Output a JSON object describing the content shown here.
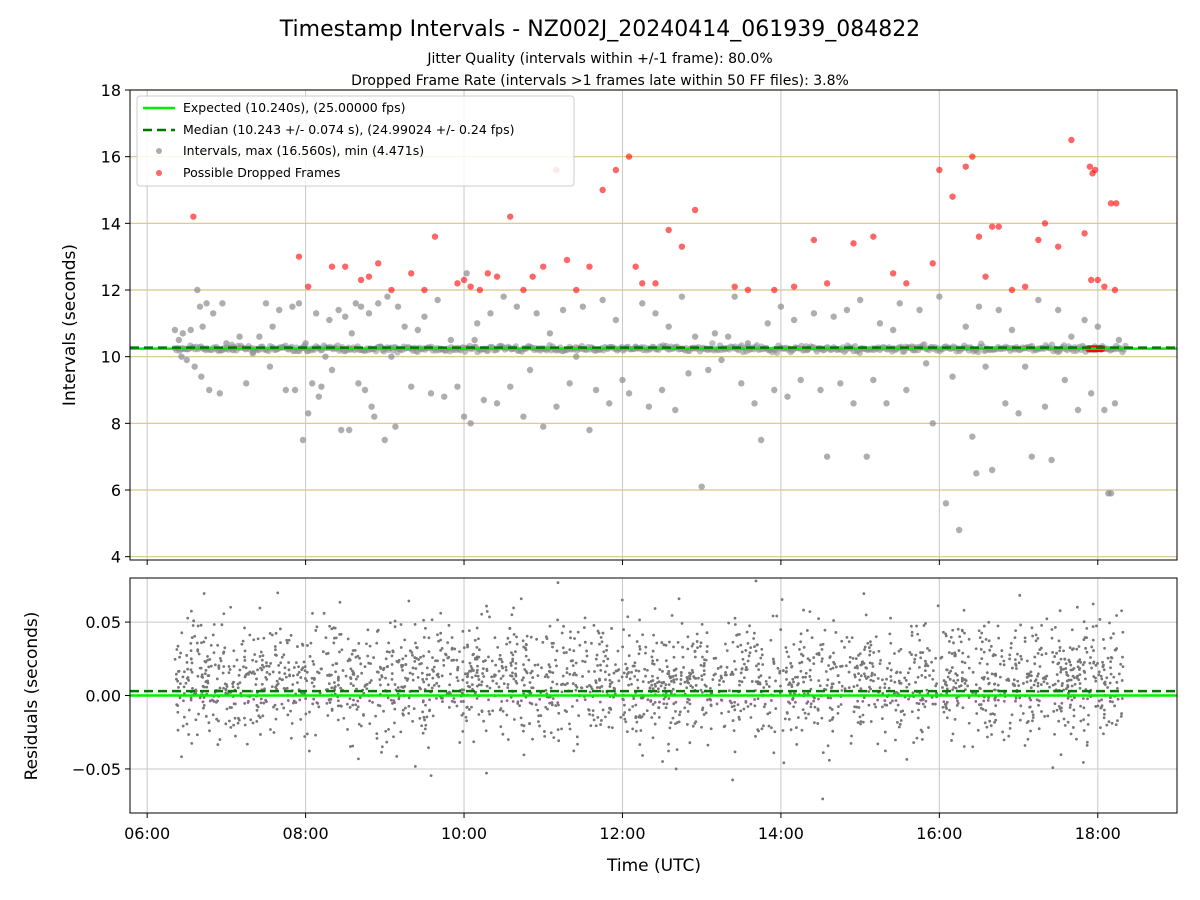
{
  "chart_data": [
    {
      "type": "scatter",
      "title": "Timestamp Intervals - NZ002J_20240414_061939_084822",
      "subtitle_lines": [
        "Jitter Quality (intervals within +/-1 frame): 80.0%",
        "Dropped Frame Rate (intervals >1 frames late within 50 FF files): 3.8%"
      ],
      "xlabel": "",
      "ylabel": "Intervals (seconds)",
      "xlim": [
        "05:47",
        "19:00"
      ],
      "ylim": [
        3.9,
        18
      ],
      "yticks": [
        4,
        6,
        8,
        10,
        12,
        14,
        16,
        18
      ],
      "ytick_labels": [
        "4",
        "6",
        "8",
        "10",
        "12",
        "14",
        "16",
        "18"
      ],
      "grid": true,
      "legend_position": "top-left",
      "reference_lines": [
        {
          "name": "Expected (10.240s), (25.00000 fps)",
          "y": 10.24,
          "style": "solid",
          "color": "#00ee00"
        },
        {
          "name": "Median (10.243 +/- 0.074 s), (24.99024 +/- 0.24 fps)",
          "y": 10.243,
          "style": "dashed",
          "color": "#007700"
        }
      ],
      "series": [
        {
          "name": "Intervals, max (16.560s), min (4.471s)",
          "color": "#8c8c8c",
          "points": [
            [
              "06:21",
              10.8
            ],
            [
              "06:24",
              10.5
            ],
            [
              "06:26",
              10.0
            ],
            [
              "06:27",
              10.7
            ],
            [
              "06:30",
              9.9
            ],
            [
              "06:33",
              10.8
            ],
            [
              "06:36",
              9.7
            ],
            [
              "06:38",
              12.0
            ],
            [
              "06:40",
              11.5
            ],
            [
              "06:41",
              9.4
            ],
            [
              "06:42",
              10.9
            ],
            [
              "06:45",
              11.6
            ],
            [
              "06:47",
              9.0
            ],
            [
              "06:50",
              11.3
            ],
            [
              "06:55",
              8.9
            ],
            [
              "06:57",
              11.6
            ],
            [
              "07:00",
              10.4
            ],
            [
              "07:05",
              10.2
            ],
            [
              "07:10",
              10.6
            ],
            [
              "07:15",
              9.2
            ],
            [
              "07:20",
              10.1
            ],
            [
              "07:25",
              10.6
            ],
            [
              "07:30",
              11.6
            ],
            [
              "07:33",
              9.7
            ],
            [
              "07:35",
              10.9
            ],
            [
              "07:40",
              11.4
            ],
            [
              "07:45",
              9.0
            ],
            [
              "07:50",
              11.5
            ],
            [
              "07:52",
              9.0
            ],
            [
              "07:55",
              11.6
            ],
            [
              "07:58",
              7.5
            ],
            [
              "08:00",
              10.4
            ],
            [
              "08:02",
              8.3
            ],
            [
              "08:05",
              9.2
            ],
            [
              "08:08",
              11.3
            ],
            [
              "08:10",
              8.8
            ],
            [
              "08:12",
              9.1
            ],
            [
              "08:15",
              10.0
            ],
            [
              "08:18",
              11.1
            ],
            [
              "08:20",
              9.6
            ],
            [
              "08:25",
              11.4
            ],
            [
              "08:27",
              7.8
            ],
            [
              "08:30",
              11.2
            ],
            [
              "08:33",
              7.8
            ],
            [
              "08:35",
              10.7
            ],
            [
              "08:38",
              11.6
            ],
            [
              "08:40",
              9.2
            ],
            [
              "08:42",
              11.5
            ],
            [
              "08:45",
              9.0
            ],
            [
              "08:48",
              11.3
            ],
            [
              "08:50",
              8.5
            ],
            [
              "08:52",
              8.2
            ],
            [
              "08:55",
              11.6
            ],
            [
              "08:57",
              10.3
            ],
            [
              "09:00",
              7.5
            ],
            [
              "09:02",
              11.8
            ],
            [
              "09:05",
              10.0
            ],
            [
              "09:08",
              7.9
            ],
            [
              "09:10",
              11.5
            ],
            [
              "09:15",
              10.9
            ],
            [
              "09:20",
              9.1
            ],
            [
              "09:25",
              10.8
            ],
            [
              "09:30",
              11.2
            ],
            [
              "09:35",
              8.9
            ],
            [
              "09:40",
              11.7
            ],
            [
              "09:45",
              8.8
            ],
            [
              "09:50",
              10.5
            ],
            [
              "09:55",
              9.1
            ],
            [
              "10:00",
              8.2
            ],
            [
              "10:02",
              12.5
            ],
            [
              "10:05",
              8.0
            ],
            [
              "10:08",
              10.5
            ],
            [
              "10:10",
              11.0
            ],
            [
              "10:15",
              8.7
            ],
            [
              "10:20",
              11.3
            ],
            [
              "10:25",
              8.6
            ],
            [
              "10:30",
              11.8
            ],
            [
              "10:35",
              9.1
            ],
            [
              "10:40",
              11.5
            ],
            [
              "10:45",
              8.2
            ],
            [
              "10:50",
              9.6
            ],
            [
              "10:55",
              11.3
            ],
            [
              "11:00",
              7.9
            ],
            [
              "11:05",
              10.7
            ],
            [
              "11:10",
              8.5
            ],
            [
              "11:15",
              11.4
            ],
            [
              "11:20",
              9.2
            ],
            [
              "11:25",
              10.0
            ],
            [
              "11:30",
              11.5
            ],
            [
              "11:35",
              7.8
            ],
            [
              "11:40",
              9.0
            ],
            [
              "11:45",
              11.7
            ],
            [
              "11:50",
              8.6
            ],
            [
              "11:55",
              11.1
            ],
            [
              "12:00",
              9.3
            ],
            [
              "12:05",
              8.9
            ],
            [
              "12:10",
              10.3
            ],
            [
              "12:15",
              11.6
            ],
            [
              "12:20",
              8.5
            ],
            [
              "12:25",
              11.3
            ],
            [
              "12:30",
              9.0
            ],
            [
              "12:35",
              10.9
            ],
            [
              "12:40",
              8.4
            ],
            [
              "12:45",
              11.8
            ],
            [
              "12:50",
              9.5
            ],
            [
              "12:55",
              10.6
            ],
            [
              "13:00",
              6.1
            ],
            [
              "13:05",
              9.6
            ],
            [
              "13:10",
              10.7
            ],
            [
              "13:15",
              9.9
            ],
            [
              "13:20",
              10.6
            ],
            [
              "13:25",
              11.8
            ],
            [
              "13:30",
              9.2
            ],
            [
              "13:35",
              10.4
            ],
            [
              "13:40",
              8.6
            ],
            [
              "13:45",
              7.5
            ],
            [
              "13:50",
              11.0
            ],
            [
              "13:55",
              9.0
            ],
            [
              "14:00",
              11.5
            ],
            [
              "14:05",
              8.8
            ],
            [
              "14:10",
              11.1
            ],
            [
              "14:15",
              9.3
            ],
            [
              "14:20",
              10.2
            ],
            [
              "14:25",
              11.3
            ],
            [
              "14:30",
              9.0
            ],
            [
              "14:35",
              7.0
            ],
            [
              "14:40",
              11.2
            ],
            [
              "14:45",
              9.2
            ],
            [
              "14:50",
              11.4
            ],
            [
              "14:55",
              8.6
            ],
            [
              "15:00",
              11.7
            ],
            [
              "15:05",
              7.0
            ],
            [
              "15:10",
              9.3
            ],
            [
              "15:15",
              11.0
            ],
            [
              "15:20",
              8.6
            ],
            [
              "15:25",
              10.8
            ],
            [
              "15:30",
              11.6
            ],
            [
              "15:35",
              9.0
            ],
            [
              "15:40",
              10.2
            ],
            [
              "15:45",
              11.4
            ],
            [
              "15:50",
              9.8
            ],
            [
              "15:55",
              8.0
            ],
            [
              "16:00",
              11.8
            ],
            [
              "16:05",
              5.6
            ],
            [
              "16:10",
              9.4
            ],
            [
              "16:15",
              4.8
            ],
            [
              "16:20",
              10.9
            ],
            [
              "16:25",
              7.6
            ],
            [
              "16:28",
              6.5
            ],
            [
              "16:30",
              11.5
            ],
            [
              "16:35",
              9.7
            ],
            [
              "16:40",
              6.6
            ],
            [
              "16:45",
              11.4
            ],
            [
              "16:50",
              8.6
            ],
            [
              "16:55",
              10.8
            ],
            [
              "17:00",
              8.3
            ],
            [
              "17:05",
              9.7
            ],
            [
              "17:10",
              7.0
            ],
            [
              "17:15",
              11.7
            ],
            [
              "17:20",
              8.5
            ],
            [
              "17:25",
              6.9
            ],
            [
              "17:30",
              11.4
            ],
            [
              "17:35",
              9.3
            ],
            [
              "17:40",
              10.6
            ],
            [
              "17:45",
              8.4
            ],
            [
              "17:50",
              11.1
            ],
            [
              "17:55",
              8.9
            ],
            [
              "18:00",
              10.9
            ],
            [
              "18:05",
              8.4
            ],
            [
              "18:08",
              5.9
            ],
            [
              "18:10",
              5.9
            ],
            [
              "18:13",
              8.6
            ],
            [
              "18:16",
              10.5
            ]
          ]
        },
        {
          "name": "Possible Dropped Frames",
          "color": "#ff0000",
          "points": [
            [
              "06:35",
              14.2
            ],
            [
              "07:55",
              13.0
            ],
            [
              "08:02",
              12.1
            ],
            [
              "08:20",
              12.7
            ],
            [
              "08:30",
              12.7
            ],
            [
              "08:42",
              12.3
            ],
            [
              "08:48",
              12.4
            ],
            [
              "08:55",
              12.8
            ],
            [
              "09:05",
              12.0
            ],
            [
              "09:20",
              12.5
            ],
            [
              "09:30",
              12.0
            ],
            [
              "09:38",
              13.6
            ],
            [
              "09:55",
              12.2
            ],
            [
              "10:00",
              12.3
            ],
            [
              "10:05",
              12.1
            ],
            [
              "10:12",
              12.0
            ],
            [
              "10:18",
              12.5
            ],
            [
              "10:25",
              12.4
            ],
            [
              "10:35",
              14.2
            ],
            [
              "10:45",
              12.0
            ],
            [
              "10:52",
              12.4
            ],
            [
              "11:00",
              12.7
            ],
            [
              "11:10",
              15.6
            ],
            [
              "11:18",
              12.9
            ],
            [
              "11:25",
              12.0
            ],
            [
              "11:35",
              12.7
            ],
            [
              "11:45",
              15.0
            ],
            [
              "11:55",
              15.6
            ],
            [
              "12:05",
              16.0
            ],
            [
              "12:10",
              12.7
            ],
            [
              "12:15",
              12.2
            ],
            [
              "12:25",
              12.2
            ],
            [
              "12:35",
              13.8
            ],
            [
              "12:45",
              13.3
            ],
            [
              "12:55",
              14.4
            ],
            [
              "13:25",
              12.1
            ],
            [
              "13:35",
              12.0
            ],
            [
              "13:55",
              12.0
            ],
            [
              "14:10",
              12.1
            ],
            [
              "14:25",
              13.5
            ],
            [
              "14:35",
              12.2
            ],
            [
              "14:55",
              13.4
            ],
            [
              "15:10",
              13.6
            ],
            [
              "15:25",
              12.5
            ],
            [
              "15:35",
              12.2
            ],
            [
              "15:55",
              12.8
            ],
            [
              "16:00",
              15.6
            ],
            [
              "16:10",
              14.8
            ],
            [
              "16:20",
              15.7
            ],
            [
              "16:25",
              16.0
            ],
            [
              "16:30",
              13.6
            ],
            [
              "16:35",
              12.4
            ],
            [
              "16:40",
              13.9
            ],
            [
              "16:45",
              13.9
            ],
            [
              "16:55",
              12.0
            ],
            [
              "17:05",
              12.1
            ],
            [
              "17:15",
              13.5
            ],
            [
              "17:20",
              14.0
            ],
            [
              "17:30",
              13.3
            ],
            [
              "17:40",
              16.5
            ],
            [
              "17:50",
              13.7
            ],
            [
              "17:55",
              12.3
            ],
            [
              "18:00",
              12.3
            ],
            [
              "18:05",
              12.1
            ],
            [
              "17:54",
              15.7
            ],
            [
              "17:56",
              15.5
            ],
            [
              "17:58",
              15.6
            ],
            [
              "18:10",
              14.6
            ],
            [
              "18:14",
              14.6
            ],
            [
              "18:13",
              12.0
            ]
          ]
        }
      ]
    },
    {
      "type": "scatter",
      "title": "",
      "xlabel": "Time (UTC)",
      "ylabel": "Residuals (seconds)",
      "xlim": [
        "05:47",
        "19:00"
      ],
      "ylim": [
        -0.08,
        0.08
      ],
      "xticks": [
        "06:00",
        "08:00",
        "10:00",
        "12:00",
        "14:00",
        "16:00",
        "18:00"
      ],
      "yticks": [
        -0.05,
        0.0,
        0.05
      ],
      "ytick_labels": [
        "−0.05",
        "0.00",
        "0.05"
      ],
      "grid": true,
      "reference_lines": [
        {
          "y": 0.0,
          "style": "solid",
          "color": "#00ee00"
        },
        {
          "y": 0.003,
          "style": "dashed",
          "color": "#007700"
        }
      ],
      "series": [
        {
          "color": "#777777",
          "distribution": {
            "x_range": [
              "06:21",
              "18:21"
            ],
            "center": 0.01,
            "spread": 0.02,
            "approx_count": 2400
          }
        }
      ]
    }
  ]
}
